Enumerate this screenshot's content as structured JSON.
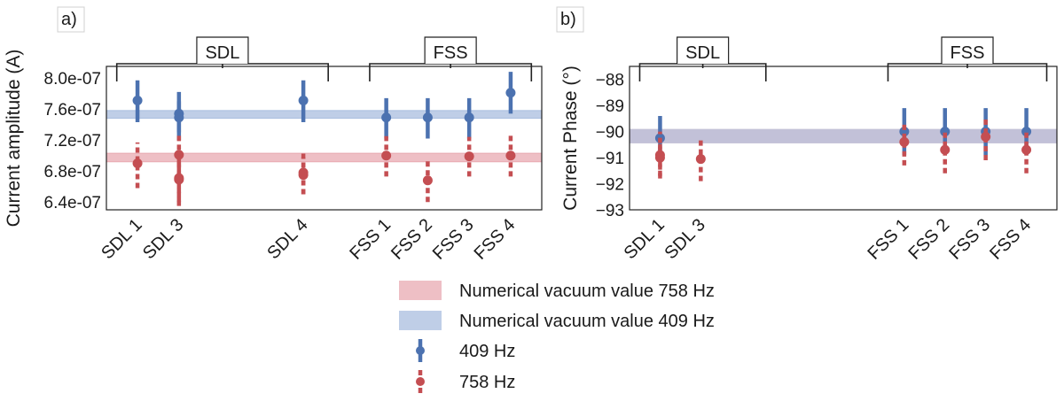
{
  "chart_data": [
    {
      "panel_label": "a)",
      "type": "errorbar",
      "ylabel": "Current amplitude (A)",
      "ylim": [
        6.3e-07,
        8.15e-07
      ],
      "yticks": [
        6.4e-07,
        6.8e-07,
        7.2e-07,
        7.6e-07,
        8e-07
      ],
      "ytick_labels": [
        "6.4e-07",
        "6.8e-07",
        "7.2e-07",
        "7.6e-07",
        "8.0e-07"
      ],
      "x_categories": [
        {
          "label": "SDL 1",
          "x": 1
        },
        {
          "label": "SDL 3",
          "x": 2
        },
        {
          "label": "SDL 4",
          "x": 5
        },
        {
          "label": "FSS 1",
          "x": 7
        },
        {
          "label": "FSS 2",
          "x": 8
        },
        {
          "label": "FSS 3",
          "x": 9
        },
        {
          "label": "FSS 4",
          "x": 10
        }
      ],
      "xlim": [
        0.25,
        10.75
      ],
      "bands": [
        {
          "name": "Numerical vacuum value 758 Hz",
          "ymin": 6.92e-07,
          "ymax": 7.03e-07,
          "color": "#e8a9b1"
        },
        {
          "name": "Numerical vacuum value 409 Hz",
          "ymin": 7.48e-07,
          "ymax": 7.58e-07,
          "color": "#a9bedf"
        }
      ],
      "groups": [
        {
          "label": "SDL",
          "x_from": 0.5,
          "x_to": 5.6
        },
        {
          "label": "FSS",
          "x_from": 6.6,
          "x_to": 10.5
        }
      ],
      "series": [
        {
          "name": "409 Hz",
          "color": "#4c72b0",
          "style": "solid",
          "points": [
            {
              "x": 1,
              "y": 7.71e-07,
              "lo": 7.43e-07,
              "hi": 7.97e-07
            },
            {
              "x": 2,
              "y": 7.54e-07,
              "lo": 7.2e-07,
              "hi": 7.82e-07
            },
            {
              "x": 2,
              "y": 7.49e-07,
              "lo": 7.3e-07,
              "hi": 7.7e-07
            },
            {
              "x": 5,
              "y": 7.71e-07,
              "lo": 7.43e-07,
              "hi": 7.97e-07
            },
            {
              "x": 7,
              "y": 7.49e-07,
              "lo": 7.22e-07,
              "hi": 7.74e-07
            },
            {
              "x": 8,
              "y": 7.49e-07,
              "lo": 7.22e-07,
              "hi": 7.74e-07
            },
            {
              "x": 9,
              "y": 7.49e-07,
              "lo": 7.22e-07,
              "hi": 7.74e-07
            },
            {
              "x": 10,
              "y": 7.81e-07,
              "lo": 7.54e-07,
              "hi": 8.08e-07
            }
          ]
        },
        {
          "name": "758 Hz",
          "color": "#c44e52",
          "style": "dashed",
          "points": [
            {
              "x": 1,
              "y": 6.9e-07,
              "lo": 6.58e-07,
              "hi": 7.17e-07
            },
            {
              "x": 2,
              "y": 7.01e-07,
              "lo": 6.73e-07,
              "hi": 7.27e-07
            },
            {
              "x": 2,
              "y": 6.71e-07,
              "lo": 6.35e-07,
              "hi": 7.04e-07
            },
            {
              "x": 2,
              "y": 6.69e-07,
              "lo": 6.4e-07,
              "hi": 6.96e-07
            },
            {
              "x": 5,
              "y": 6.78e-07,
              "lo": 6.5e-07,
              "hi": 7.03e-07
            },
            {
              "x": 5,
              "y": 6.75e-07,
              "lo": 6.5e-07,
              "hi": 6.98e-07
            },
            {
              "x": 7,
              "y": 7e-07,
              "lo": 6.73e-07,
              "hi": 7.25e-07
            },
            {
              "x": 8,
              "y": 6.68e-07,
              "lo": 6.4e-07,
              "hi": 6.95e-07
            },
            {
              "x": 9,
              "y": 6.99e-07,
              "lo": 6.73e-07,
              "hi": 7.24e-07
            },
            {
              "x": 10,
              "y": 7e-07,
              "lo": 6.73e-07,
              "hi": 7.27e-07
            }
          ]
        }
      ]
    },
    {
      "panel_label": "b)",
      "type": "errorbar",
      "ylabel": "Current Phase (°)",
      "ylim": [
        -93,
        -87.5
      ],
      "yticks": [
        -93,
        -92,
        -91,
        -90,
        -89,
        -88
      ],
      "ytick_labels": [
        "−93",
        "−92",
        "−91",
        "−90",
        "−89",
        "−88"
      ],
      "x_categories": [
        {
          "label": "SDL 1",
          "x": 1
        },
        {
          "label": "SDL 3",
          "x": 2
        },
        {
          "label": "FSS 1",
          "x": 7
        },
        {
          "label": "FSS 2",
          "x": 8
        },
        {
          "label": "FSS 3",
          "x": 9
        },
        {
          "label": "FSS 4",
          "x": 10
        }
      ],
      "xlim": [
        0.25,
        10.75
      ],
      "bands": [
        {
          "name": "Numerical vacuum value 758 Hz",
          "ymin": -90.45,
          "ymax": -89.9,
          "color": "#e8a9b1"
        },
        {
          "name": "Numerical vacuum value 409 Hz",
          "ymin": -90.45,
          "ymax": -89.9,
          "color": "#a9bedf"
        }
      ],
      "groups": [
        {
          "label": "SDL",
          "x_from": 0.5,
          "x_to": 3.6
        },
        {
          "label": "FSS",
          "x_from": 6.6,
          "x_to": 10.5
        }
      ],
      "series": [
        {
          "name": "409 Hz",
          "color": "#4c72b0",
          "style": "solid",
          "points": [
            {
              "x": 1,
              "y": -90.25,
              "lo": -90.9,
              "hi": -89.4
            },
            {
              "x": 7,
              "y": -90.0,
              "lo": -90.9,
              "hi": -89.1
            },
            {
              "x": 8,
              "y": -90.0,
              "lo": -90.9,
              "hi": -89.1
            },
            {
              "x": 9,
              "y": -90.0,
              "lo": -90.9,
              "hi": -89.1
            },
            {
              "x": 10,
              "y": -90.0,
              "lo": -90.9,
              "hi": -89.1
            }
          ]
        },
        {
          "name": "758 Hz",
          "color": "#c44e52",
          "style": "dashed",
          "points": [
            {
              "x": 1,
              "y": -90.9,
              "lo": -91.8,
              "hi": -90.0
            },
            {
              "x": 1,
              "y": -91.0,
              "lo": -91.7,
              "hi": -90.3
            },
            {
              "x": 2,
              "y": -91.05,
              "lo": -91.9,
              "hi": -90.3
            },
            {
              "x": 7,
              "y": -90.4,
              "lo": -91.3,
              "hi": -89.6
            },
            {
              "x": 8,
              "y": -90.7,
              "lo": -91.6,
              "hi": -89.9
            },
            {
              "x": 9,
              "y": -90.2,
              "lo": -91.1,
              "hi": -89.4
            },
            {
              "x": 10,
              "y": -90.7,
              "lo": -91.6,
              "hi": -89.9
            }
          ]
        }
      ]
    }
  ],
  "legend": {
    "items": [
      {
        "label": "Numerical vacuum value 758 Hz",
        "kind": "band",
        "color": "#e8a9b1"
      },
      {
        "label": "Numerical vacuum value 409 Hz",
        "kind": "band",
        "color": "#a9bedf"
      },
      {
        "label": "409 Hz",
        "kind": "errorbar",
        "color": "#4c72b0",
        "style": "solid"
      },
      {
        "label": "758 Hz",
        "kind": "errorbar",
        "color": "#c44e52",
        "style": "dashed"
      }
    ]
  }
}
